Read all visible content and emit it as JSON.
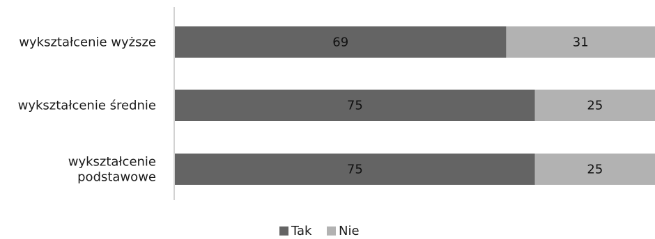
{
  "chart_data": {
    "type": "bar",
    "orientation": "horizontal",
    "stacked": true,
    "categories": [
      [
        "wykształcenie wyższe"
      ],
      [
        "wykształcenie średnie"
      ],
      [
        "wykształcenie",
        "podstawowe"
      ]
    ],
    "series": [
      {
        "name": "Tak",
        "values": [
          69,
          75,
          75
        ],
        "color": "#646464"
      },
      {
        "name": "Nie",
        "values": [
          31,
          25,
          25
        ],
        "color": "#b2b2b2"
      }
    ],
    "xlim": [
      0,
      100
    ],
    "grid": false,
    "legend": "bottom-center"
  }
}
